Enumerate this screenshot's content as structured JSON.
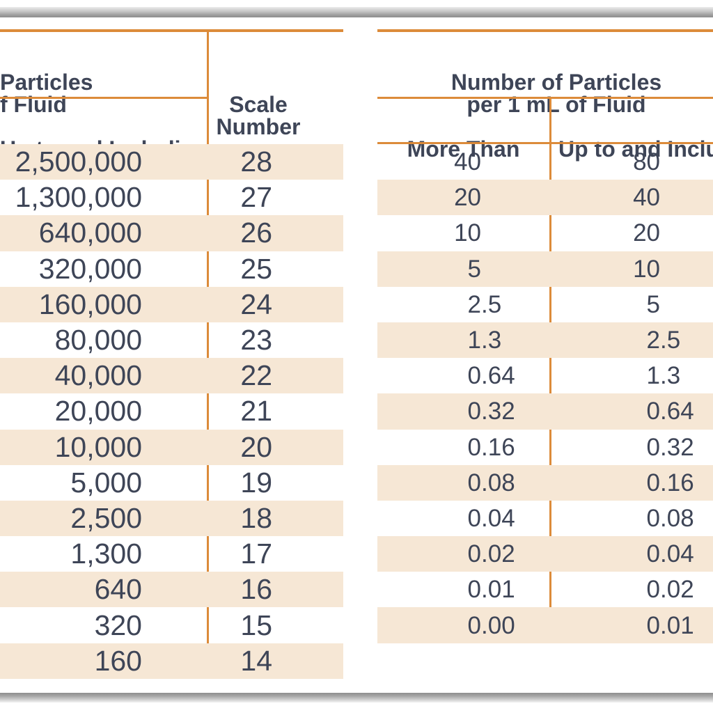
{
  "colors": {
    "orange": "#dc8b3a",
    "tan": "#f6e7d5",
    "ink": "#3e4557",
    "edge": "#909090"
  },
  "left_table": {
    "header": {
      "col1_line1": "Particles",
      "col1_line2": "f Fluid",
      "col1_sub": "Up to and Including",
      "col2_line1": "Scale",
      "col2_line2": "Number"
    },
    "columns": [
      "Up to and Including",
      "Scale Number"
    ],
    "rows": [
      [
        "2,500,000",
        "28"
      ],
      [
        "1,300,000",
        "27"
      ],
      [
        "640,000",
        "26"
      ],
      [
        "320,000",
        "25"
      ],
      [
        "160,000",
        "24"
      ],
      [
        "80,000",
        "23"
      ],
      [
        "40,000",
        "22"
      ],
      [
        "20,000",
        "21"
      ],
      [
        "10,000",
        "20"
      ],
      [
        "5,000",
        "19"
      ],
      [
        "2,500",
        "18"
      ],
      [
        "1,300",
        "17"
      ],
      [
        "640",
        "16"
      ],
      [
        "320",
        "15"
      ],
      [
        "160",
        "14"
      ]
    ]
  },
  "right_table": {
    "header": {
      "title_line1": "Number of Particles",
      "title_line2": "per 1 mL of Fluid",
      "col1": "More Than",
      "col2": "Up to and Including"
    },
    "columns": [
      "More Than",
      "Up to and Including"
    ],
    "rows": [
      [
        "40",
        "80"
      ],
      [
        "20",
        "40"
      ],
      [
        "10",
        "20"
      ],
      [
        "5",
        "10"
      ],
      [
        "2.5",
        "5"
      ],
      [
        "1.3",
        "2.5"
      ],
      [
        "0.64",
        "1.3"
      ],
      [
        "0.32",
        "0.64"
      ],
      [
        "0.16",
        "0.32"
      ],
      [
        "0.08",
        "0.16"
      ],
      [
        "0.04",
        "0.08"
      ],
      [
        "0.02",
        "0.04"
      ],
      [
        "0.01",
        "0.02"
      ],
      [
        "0.00",
        "0.01"
      ]
    ]
  }
}
